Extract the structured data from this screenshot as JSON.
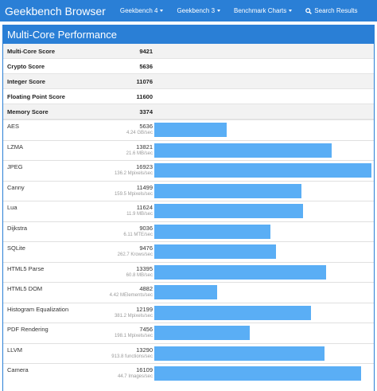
{
  "navbar": {
    "brand": "Geekbench Browser",
    "items": [
      {
        "label": "Geekbench 4",
        "dropdown": true
      },
      {
        "label": "Geekbench 3",
        "dropdown": true
      },
      {
        "label": "Benchmark Charts",
        "dropdown": true
      },
      {
        "label": "Search Results",
        "dropdown": false,
        "icon": "search-icon"
      }
    ],
    "color": "#2a7fd6"
  },
  "panel": {
    "title": "Multi-Core Performance",
    "scores": [
      {
        "label": "Multi-Core Score",
        "value": "9421"
      },
      {
        "label": "Crypto Score",
        "value": "5636"
      },
      {
        "label": "Integer Score",
        "value": "11076"
      },
      {
        "label": "Floating Point Score",
        "value": "11600"
      },
      {
        "label": "Memory Score",
        "value": "3374"
      }
    ],
    "benchmarks": [
      {
        "name": "AES",
        "score": "5636",
        "rate": "4.24 GB/sec",
        "value": 5636
      },
      {
        "name": "LZMA",
        "score": "13821",
        "rate": "21.6 MB/sec",
        "value": 13821
      },
      {
        "name": "JPEG",
        "score": "16923",
        "rate": "136.2 Mpixels/sec",
        "value": 16923
      },
      {
        "name": "Canny",
        "score": "11499",
        "rate": "159.5 Mpixels/sec",
        "value": 11499
      },
      {
        "name": "Lua",
        "score": "11624",
        "rate": "11.9 MB/sec",
        "value": 11624
      },
      {
        "name": "Dijkstra",
        "score": "9036",
        "rate": "6.11 MTE/sec",
        "value": 9036
      },
      {
        "name": "SQLite",
        "score": "9476",
        "rate": "262.7 Krows/sec",
        "value": 9476
      },
      {
        "name": "HTML5 Parse",
        "score": "13395",
        "rate": "60.8 MB/sec",
        "value": 13395
      },
      {
        "name": "HTML5 DOM",
        "score": "4882",
        "rate": "4.42 MElements/sec",
        "value": 4882
      },
      {
        "name": "Histogram Equalization",
        "score": "12199",
        "rate": "381.2 Mpixels/sec",
        "value": 12199
      },
      {
        "name": "PDF Rendering",
        "score": "7456",
        "rate": "198.1 Mpixels/sec",
        "value": 7456
      },
      {
        "name": "LLVM",
        "score": "13290",
        "rate": "913.8 functions/sec",
        "value": 13290
      },
      {
        "name": "Camera",
        "score": "16109",
        "rate": "44.7 Images/sec",
        "value": 16109
      }
    ],
    "bar_color": "#5aaef5",
    "bar_scale_max": 17000
  }
}
